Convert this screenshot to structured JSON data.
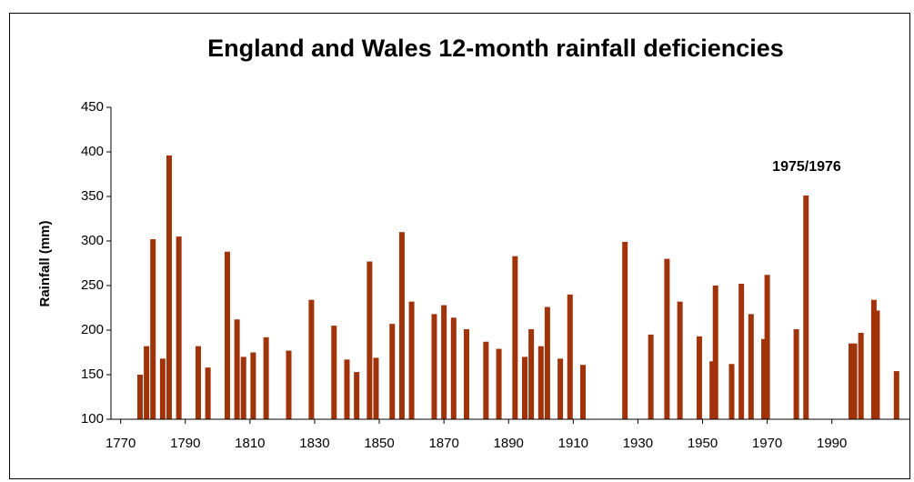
{
  "chart_data": {
    "type": "bar",
    "title": "England and Wales 12-month rainfall deficiencies",
    "y_label": "Rainfall (mm)",
    "annotation": "1975/1976",
    "color": "#a0330a",
    "x": [
      1776,
      1778,
      1780,
      1783,
      1785,
      1788,
      1794,
      1797,
      1803,
      1806,
      1808,
      1811,
      1815,
      1822,
      1829,
      1836,
      1840,
      1843,
      1847,
      1849,
      1854,
      1857,
      1860,
      1867,
      1870,
      1873,
      1877,
      1883,
      1887,
      1892,
      1895,
      1897,
      1900,
      1902,
      1906,
      1909,
      1913,
      1926,
      1934,
      1939,
      1943,
      1949,
      1953,
      1954,
      1959,
      1962,
      1965,
      1969,
      1970,
      1979,
      1982,
      1996,
      1997,
      1999,
      2003,
      2004,
      2010
    ],
    "values": [
      150,
      182,
      302,
      168,
      396,
      305,
      182,
      158,
      288,
      212,
      170,
      175,
      192,
      177,
      234,
      205,
      167,
      153,
      277,
      169,
      207,
      310,
      232,
      218,
      228,
      214,
      201,
      187,
      179,
      283,
      170,
      201,
      182,
      226,
      168,
      240,
      161,
      299,
      195,
      280,
      232,
      193,
      165,
      250,
      162,
      252,
      218,
      190,
      262,
      201,
      351,
      185,
      185,
      197,
      234,
      222,
      154
    ],
    "xlim": [
      1767,
      2014
    ],
    "xticks": [
      1770,
      1790,
      1810,
      1830,
      1850,
      1870,
      1890,
      1910,
      1930,
      1950,
      1970,
      1990
    ],
    "ylim": [
      100,
      450
    ],
    "yticks": [
      100,
      150,
      200,
      250,
      300,
      350,
      400,
      450
    ],
    "grid": false
  }
}
